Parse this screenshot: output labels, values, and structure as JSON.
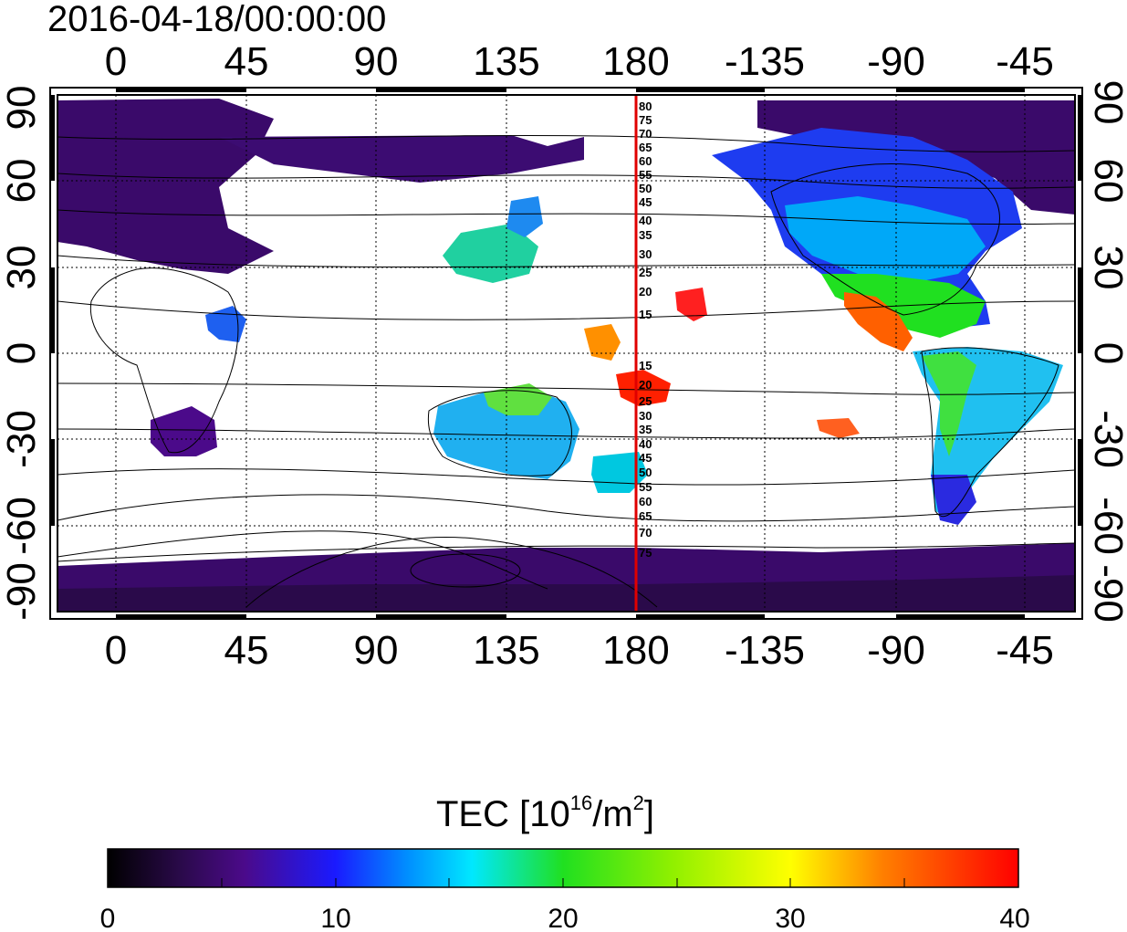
{
  "title": "2016-04-18/00:00:00",
  "map": {
    "lon_ticks": [
      "0",
      "45",
      "90",
      "135",
      "180",
      "-135",
      "-90",
      "-45"
    ],
    "lat_ticks": [
      "90",
      "60",
      "30",
      "0",
      "-30",
      "-60",
      "-90"
    ],
    "meridian_line_color": "#e00000",
    "contour_labels_north": [
      "80",
      "75",
      "70",
      "65",
      "60",
      "55",
      "50",
      "45",
      "40",
      "35",
      "30",
      "25",
      "20",
      "15"
    ],
    "contour_labels_south": [
      "15",
      "20",
      "25",
      "30",
      "35",
      "40",
      "45",
      "50",
      "55",
      "60",
      "65",
      "70",
      "75"
    ]
  },
  "colorbar": {
    "label_main": "TEC  [10",
    "label_sup1": "16",
    "label_mid": "/m",
    "label_sup2": "2",
    "label_end": "]",
    "ticks": [
      "0",
      "10",
      "20",
      "30",
      "40"
    ],
    "range": [
      0,
      40
    ],
    "colors": [
      "#000000",
      "#3a0a6a",
      "#4b0a8a",
      "#2020e0",
      "#0050ff",
      "#00c8ff",
      "#00f0c0",
      "#20e020",
      "#a0f000",
      "#ffff00",
      "#ff8000",
      "#ff0000"
    ]
  }
}
